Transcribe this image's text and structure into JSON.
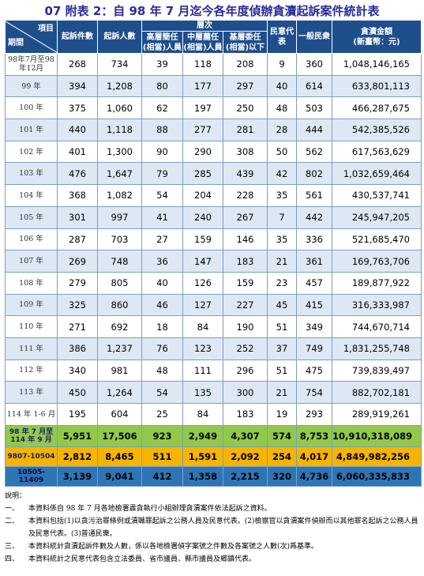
{
  "title": "07 附表 2：自 98 年 7 月迄今各年度偵辦貪瀆起訴案件統計表",
  "header": {
    "corner_top": "項目",
    "corner_bottom": "期間",
    "cases": "起訴件數",
    "persons": "起訴人數",
    "rank_group": "層次",
    "senior_l1": "高層簡任",
    "senior_l2": "(相當)人員",
    "middle_l1": "中層薦任",
    "middle_l2": "(相當)人員",
    "junior_l1": "基層委任",
    "junior_l2": "(相當)以下",
    "rep_l1": "民意代",
    "rep_l2": "表",
    "civilian": "一般民衆",
    "amount_l1": "貪瀆金額",
    "amount_l2": "(新臺幣：元)"
  },
  "rows": [
    {
      "period": "98年7月至98年12月",
      "cases": "268",
      "persons": "734",
      "senior": "39",
      "middle": "118",
      "junior": "208",
      "rep": "9",
      "civ": "360",
      "amount": "1,048,146,165"
    },
    {
      "period": "99 年",
      "cases": "394",
      "persons": "1,208",
      "senior": "80",
      "middle": "177",
      "junior": "297",
      "rep": "40",
      "civ": "614",
      "amount": "633,801,113"
    },
    {
      "period": "100 年",
      "cases": "375",
      "persons": "1,060",
      "senior": "62",
      "middle": "197",
      "junior": "250",
      "rep": "48",
      "civ": "503",
      "amount": "466,287,675"
    },
    {
      "period": "101 年",
      "cases": "440",
      "persons": "1,118",
      "senior": "88",
      "middle": "277",
      "junior": "281",
      "rep": "28",
      "civ": "444",
      "amount": "542,385,526"
    },
    {
      "period": "102 年",
      "cases": "401",
      "persons": "1,300",
      "senior": "90",
      "middle": "290",
      "junior": "308",
      "rep": "50",
      "civ": "562",
      "amount": "617,563,629"
    },
    {
      "period": "103 年",
      "cases": "476",
      "persons": "1,647",
      "senior": "79",
      "middle": "285",
      "junior": "439",
      "rep": "42",
      "civ": "802",
      "amount": "1,032,659,464"
    },
    {
      "period": "104 年",
      "cases": "368",
      "persons": "1,082",
      "senior": "54",
      "middle": "204",
      "junior": "228",
      "rep": "35",
      "civ": "561",
      "amount": "430,537,741"
    },
    {
      "period": "105 年",
      "cases": "301",
      "persons": "997",
      "senior": "41",
      "middle": "240",
      "junior": "267",
      "rep": "7",
      "civ": "442",
      "amount": "245,947,205"
    },
    {
      "period": "106 年",
      "cases": "287",
      "persons": "703",
      "senior": "27",
      "middle": "159",
      "junior": "146",
      "rep": "35",
      "civ": "336",
      "amount": "521,685,470"
    },
    {
      "period": "107 年",
      "cases": "269",
      "persons": "748",
      "senior": "36",
      "middle": "147",
      "junior": "183",
      "rep": "21",
      "civ": "361",
      "amount": "169,763,706"
    },
    {
      "period": "108 年",
      "cases": "279",
      "persons": "805",
      "senior": "40",
      "middle": "126",
      "junior": "159",
      "rep": "23",
      "civ": "457",
      "amount": "189,877,922"
    },
    {
      "period": "109 年",
      "cases": "325",
      "persons": "860",
      "senior": "46",
      "middle": "127",
      "junior": "227",
      "rep": "45",
      "civ": "415",
      "amount": "316,333,987"
    },
    {
      "period": "110 年",
      "cases": "271",
      "persons": "692",
      "senior": "18",
      "middle": "84",
      "junior": "190",
      "rep": "51",
      "civ": "349",
      "amount": "744,670,714"
    },
    {
      "period": "111 年",
      "cases": "386",
      "persons": "1,237",
      "senior": "76",
      "middle": "123",
      "junior": "252",
      "rep": "37",
      "civ": "749",
      "amount": "1,831,255,748"
    },
    {
      "period": "112 年",
      "cases": "340",
      "persons": "981",
      "senior": "48",
      "middle": "111",
      "junior": "296",
      "rep": "51",
      "civ": "475",
      "amount": "739,839,497"
    },
    {
      "period": "113 年",
      "cases": "450",
      "persons": "1,264",
      "senior": "54",
      "middle": "135",
      "junior": "300",
      "rep": "21",
      "civ": "754",
      "amount": "882,702,181"
    },
    {
      "period": "114 年 1-6 月",
      "cases": "195",
      "persons": "604",
      "senior": "25",
      "middle": "84",
      "junior": "183",
      "rep": "19",
      "civ": "293",
      "amount": "289,919,261"
    }
  ],
  "summary": [
    {
      "period": "98 年 7 月至 114 年 9 月",
      "cases": "5,951",
      "persons": "17,506",
      "senior": "923",
      "middle": "2,949",
      "junior": "4,307",
      "rep": "574",
      "civ": "8,753",
      "amount": "10,910,318,089"
    },
    {
      "period": "9807-10504",
      "cases": "2,812",
      "persons": "8,465",
      "senior": "511",
      "middle": "1,591",
      "junior": "2,092",
      "rep": "254",
      "civ": "4,017",
      "amount": "4,849,982,256"
    },
    {
      "period": "10505-11409",
      "cases": "3,139",
      "persons": "9,041",
      "senior": "412",
      "middle": "1,358",
      "junior": "2,215",
      "rep": "320",
      "civ": "4,736",
      "amount": "6,060,335,833"
    }
  ],
  "notes": {
    "heading": "說明：",
    "items": [
      {
        "num": "一、",
        "text": "本資料係自 98 年 7 月各地檢署肅貪執行小組辦理貪瀆案件依法起訴之資料。"
      },
      {
        "num": "二、",
        "text": "本資料包括(1)以貪污治罪條例或瀆職罪起訴之公務人員及民意代表。(2)檢察官以貪瀆案件偵辦而以其他罪名起訴之公務人員及民意代表。(3)普通民衆。"
      },
      {
        "num": "三、",
        "text": "本資料統計貪瀆起訴件數及人數，係以各地檢署偵字案號之件數及各案號之人數(次)爲基準。"
      },
      {
        "num": "四、",
        "text": "本資料統計之民意代表包含立法委員、省市議員、縣市議員及鄉鎮代表。"
      }
    ]
  }
}
